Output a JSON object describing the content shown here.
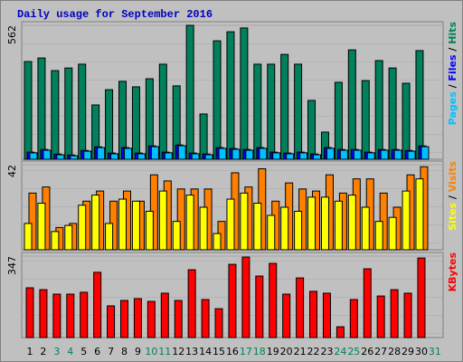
{
  "title": "Daily usage for September 2016",
  "legend_separator": "/",
  "chart_data": [
    {
      "type": "bar",
      "ylim": [
        0,
        562
      ],
      "yticks": [
        562
      ],
      "series": [
        {
          "name": "Hits",
          "color": "#00805c",
          "values": [
            410,
            425,
            372,
            383,
            399,
            228,
            292,
            327,
            304,
            338,
            399,
            308,
            562,
            190,
            497,
            535,
            551,
            399,
            399,
            440,
            399,
            247,
            114,
            323,
            459,
            330,
            414,
            383,
            319,
            456,
            null
          ]
        },
        {
          "name": "Files",
          "color": "#0000ff",
          "values": [
            30,
            41,
            22,
            18,
            37,
            52,
            26,
            49,
            26,
            56,
            30,
            60,
            26,
            22,
            49,
            45,
            41,
            49,
            30,
            26,
            30,
            22,
            49,
            41,
            41,
            30,
            41,
            41,
            37,
            56,
            null
          ]
        },
        {
          "name": "Pages",
          "color": "#00c0ff",
          "values": [
            27,
            38,
            19,
            15,
            34,
            49,
            23,
            46,
            23,
            53,
            27,
            57,
            23,
            19,
            46,
            42,
            38,
            46,
            27,
            23,
            27,
            19,
            46,
            38,
            38,
            27,
            38,
            38,
            34,
            53,
            null
          ]
        }
      ]
    },
    {
      "type": "bar",
      "ylim": [
        0,
        42
      ],
      "yticks": [
        42
      ],
      "series": [
        {
          "name": "Visits",
          "color": "#ff8000",
          "values": [
            28,
            31,
            11,
            13,
            24,
            29,
            24,
            29,
            24,
            37,
            34,
            30,
            30,
            30,
            14,
            38,
            31,
            40,
            24,
            33,
            30,
            29,
            37,
            28,
            35,
            35,
            28,
            21,
            37,
            41,
            null
          ]
        },
        {
          "name": "Sites",
          "color": "#ffff00",
          "values": [
            13,
            23,
            9,
            12,
            22,
            27,
            13,
            25,
            24,
            19,
            29,
            14,
            27,
            21,
            8,
            25,
            28,
            23,
            17,
            21,
            19,
            26,
            26,
            24,
            27,
            21,
            14,
            16,
            29,
            35,
            null
          ]
        }
      ]
    },
    {
      "type": "bar",
      "ylim": [
        0,
        347
      ],
      "yticks": [
        347
      ],
      "categories": [
        "1",
        "2",
        "3",
        "4",
        "5",
        "6",
        "7",
        "8",
        "9",
        "10",
        "11",
        "12",
        "13",
        "14",
        "15",
        "16",
        "17",
        "18",
        "19",
        "20",
        "21",
        "22",
        "23",
        "24",
        "25",
        "26",
        "27",
        "28",
        "29",
        "30",
        "31"
      ],
      "category_colors": [
        "#000000",
        "#000000",
        "#00805c",
        "#00805c",
        "#000000",
        "#000000",
        "#000000",
        "#000000",
        "#000000",
        "#00805c",
        "#00805c",
        "#000000",
        "#000000",
        "#000000",
        "#000000",
        "#000000",
        "#00805c",
        "#00805c",
        "#000000",
        "#000000",
        "#000000",
        "#000000",
        "#000000",
        "#00805c",
        "#00805c",
        "#000000",
        "#000000",
        "#000000",
        "#000000",
        "#000000",
        "#00805c"
      ],
      "series": [
        {
          "name": "KBytes",
          "color": "#ff0000",
          "values": [
            212,
            204,
            185,
            185,
            193,
            278,
            135,
            158,
            166,
            154,
            189,
            158,
            289,
            162,
            123,
            312,
            343,
            262,
            316,
            185,
            254,
            197,
            189,
            46,
            162,
            293,
            177,
            204,
            189,
            339,
            null
          ]
        }
      ]
    }
  ]
}
